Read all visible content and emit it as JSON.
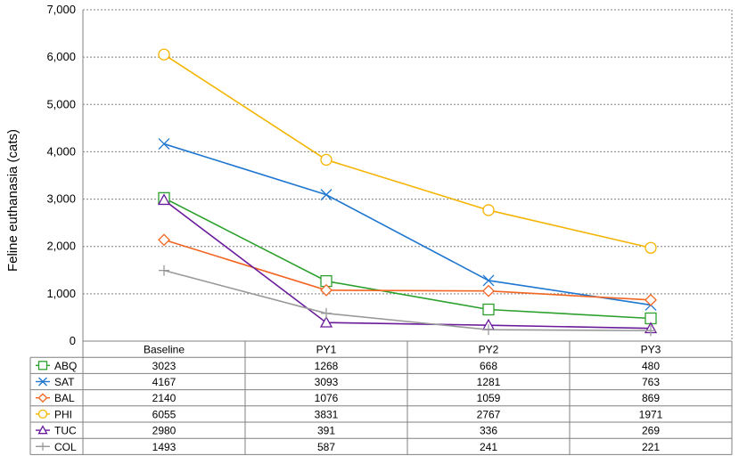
{
  "chart_data": {
    "type": "line",
    "title": "",
    "xlabel": "",
    "ylabel": "Feline euthanasia (cats)",
    "ylim": [
      0,
      7000
    ],
    "yticks": [
      "0",
      "1,000",
      "2,000",
      "3,000",
      "4,000",
      "5,000",
      "6,000",
      "7,000"
    ],
    "grid": true,
    "legend": "data-table-below",
    "categories": [
      "Baseline",
      "PY1",
      "PY2",
      "PY3"
    ],
    "series": [
      {
        "name": "ABQ",
        "values": [
          3023,
          1268,
          668,
          480
        ],
        "color": "#2ca02c",
        "marker": "square"
      },
      {
        "name": "SAT",
        "values": [
          4167,
          3093,
          1281,
          763
        ],
        "color": "#1f77d0",
        "marker": "x"
      },
      {
        "name": "BAL",
        "values": [
          2140,
          1076,
          1059,
          869
        ],
        "color": "#f26522",
        "marker": "diamond"
      },
      {
        "name": "PHI",
        "values": [
          6055,
          3831,
          2767,
          1971
        ],
        "color": "#f5b400",
        "marker": "circle"
      },
      {
        "name": "TUC",
        "values": [
          2980,
          391,
          336,
          269
        ],
        "color": "#6a1b9a",
        "marker": "triangle"
      },
      {
        "name": "COL",
        "values": [
          1493,
          587,
          241,
          221
        ],
        "color": "#999999",
        "marker": "plus"
      }
    ]
  }
}
